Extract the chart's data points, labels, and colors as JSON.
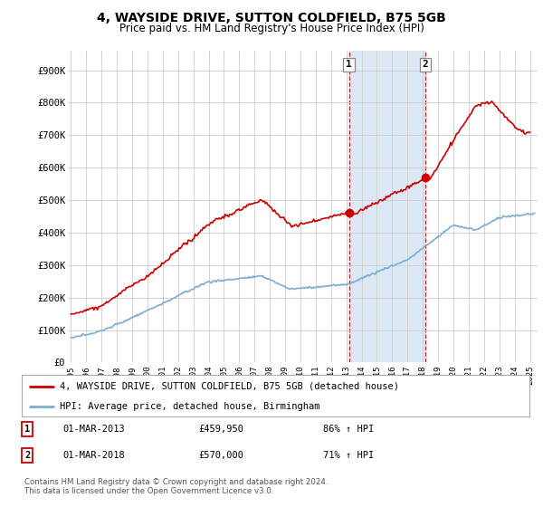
{
  "title": "4, WAYSIDE DRIVE, SUTTON COLDFIELD, B75 5GB",
  "subtitle": "Price paid vs. HM Land Registry's House Price Index (HPI)",
  "ylabel_ticks": [
    "£0",
    "£100K",
    "£200K",
    "£300K",
    "£400K",
    "£500K",
    "£600K",
    "£700K",
    "£800K",
    "£900K"
  ],
  "ytick_vals": [
    0,
    100000,
    200000,
    300000,
    400000,
    500000,
    600000,
    700000,
    800000,
    900000
  ],
  "ylim": [
    0,
    960000
  ],
  "xlim_start": 1994.8,
  "xlim_end": 2025.5,
  "sale1_year": 2013.17,
  "sale1_price": 459950,
  "sale1_label": "1",
  "sale1_date": "01-MAR-2013",
  "sale1_pct": "86% ↑ HPI",
  "sale2_year": 2018.17,
  "sale2_price": 570000,
  "sale2_label": "2",
  "sale2_date": "01-MAR-2018",
  "sale2_pct": "71% ↑ HPI",
  "property_color": "#cc0000",
  "hpi_color": "#7aadcf",
  "shaded_color": "#dce9f5",
  "legend_property": "4, WAYSIDE DRIVE, SUTTON COLDFIELD, B75 5GB (detached house)",
  "legend_hpi": "HPI: Average price, detached house, Birmingham",
  "footer": "Contains HM Land Registry data © Crown copyright and database right 2024.\nThis data is licensed under the Open Government Licence v3.0.",
  "background_color": "#ffffff",
  "grid_color": "#cccccc",
  "sale1_price_str": "£459,950",
  "sale2_price_str": "£570,000"
}
